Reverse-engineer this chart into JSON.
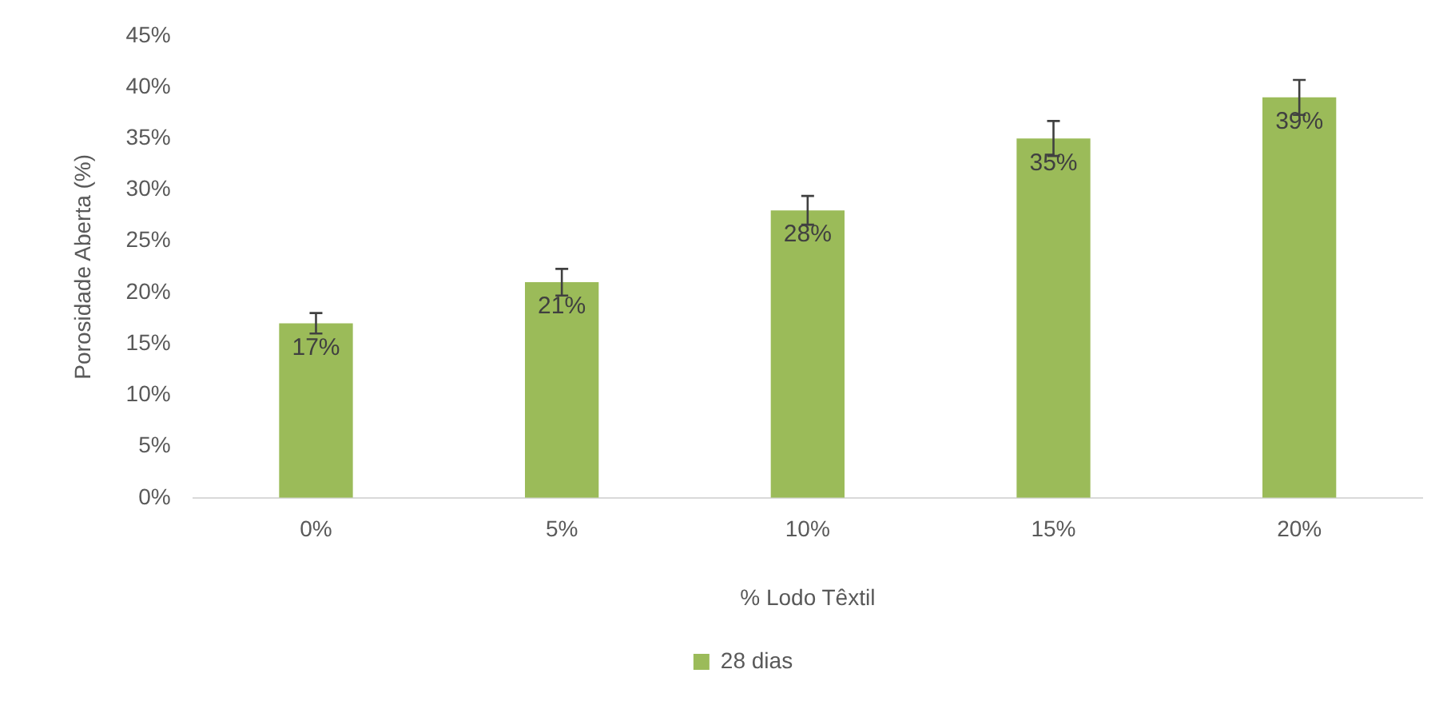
{
  "chart_data": {
    "type": "bar",
    "xlabel": "% Lodo Têxtil",
    "ylabel": "Porosidade Aberta (%)",
    "categories": [
      "0%",
      "5%",
      "10%",
      "15%",
      "20%"
    ],
    "series": [
      {
        "name": "28 dias",
        "color": "#9bbb59",
        "values": [
          17,
          21,
          28,
          35,
          39
        ],
        "errors": [
          1,
          1.3,
          1.4,
          1.7,
          1.7
        ],
        "value_labels": [
          "17%",
          "21%",
          "28%",
          "35%",
          "39%"
        ]
      }
    ],
    "ylim": [
      0,
      45
    ],
    "yticks": [
      {
        "value": 0,
        "label": "0%"
      },
      {
        "value": 5,
        "label": "5%"
      },
      {
        "value": 10,
        "label": "10%"
      },
      {
        "value": 15,
        "label": "15%"
      },
      {
        "value": 20,
        "label": "20%"
      },
      {
        "value": 25,
        "label": "25%"
      },
      {
        "value": 30,
        "label": "30%"
      },
      {
        "value": 35,
        "label": "35%"
      },
      {
        "value": 40,
        "label": "40%"
      },
      {
        "value": 45,
        "label": "45%"
      }
    ],
    "grid": false,
    "legend": "bottom"
  }
}
